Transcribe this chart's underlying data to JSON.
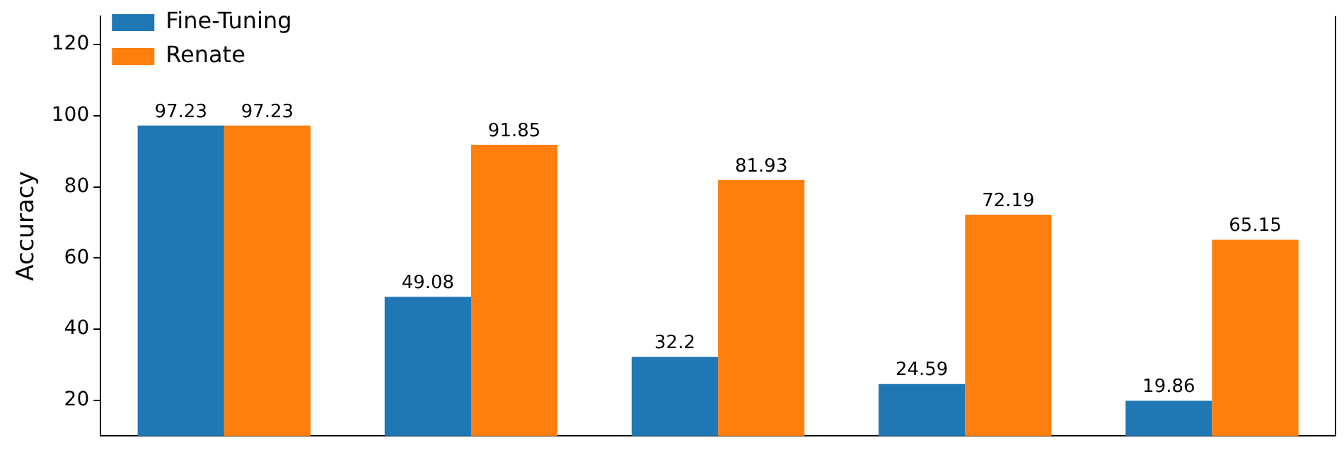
{
  "chart_data": {
    "type": "bar",
    "ylabel": "Accuracy",
    "categories": [
      null,
      null,
      null,
      null,
      null
    ],
    "series": [
      {
        "name": "Fine-Tuning",
        "color": "#1f77b4",
        "values": [
          97.23,
          49.08,
          32.2,
          24.59,
          19.86
        ]
      },
      {
        "name": "Renate",
        "color": "#ff7f0e",
        "values": [
          97.23,
          91.85,
          81.93,
          72.19,
          65.15
        ]
      }
    ],
    "ylim": [
      10,
      128
    ],
    "yticks": [
      20,
      40,
      60,
      80,
      100,
      120
    ],
    "grid": false,
    "legend": "top left",
    "data_labels": true
  }
}
